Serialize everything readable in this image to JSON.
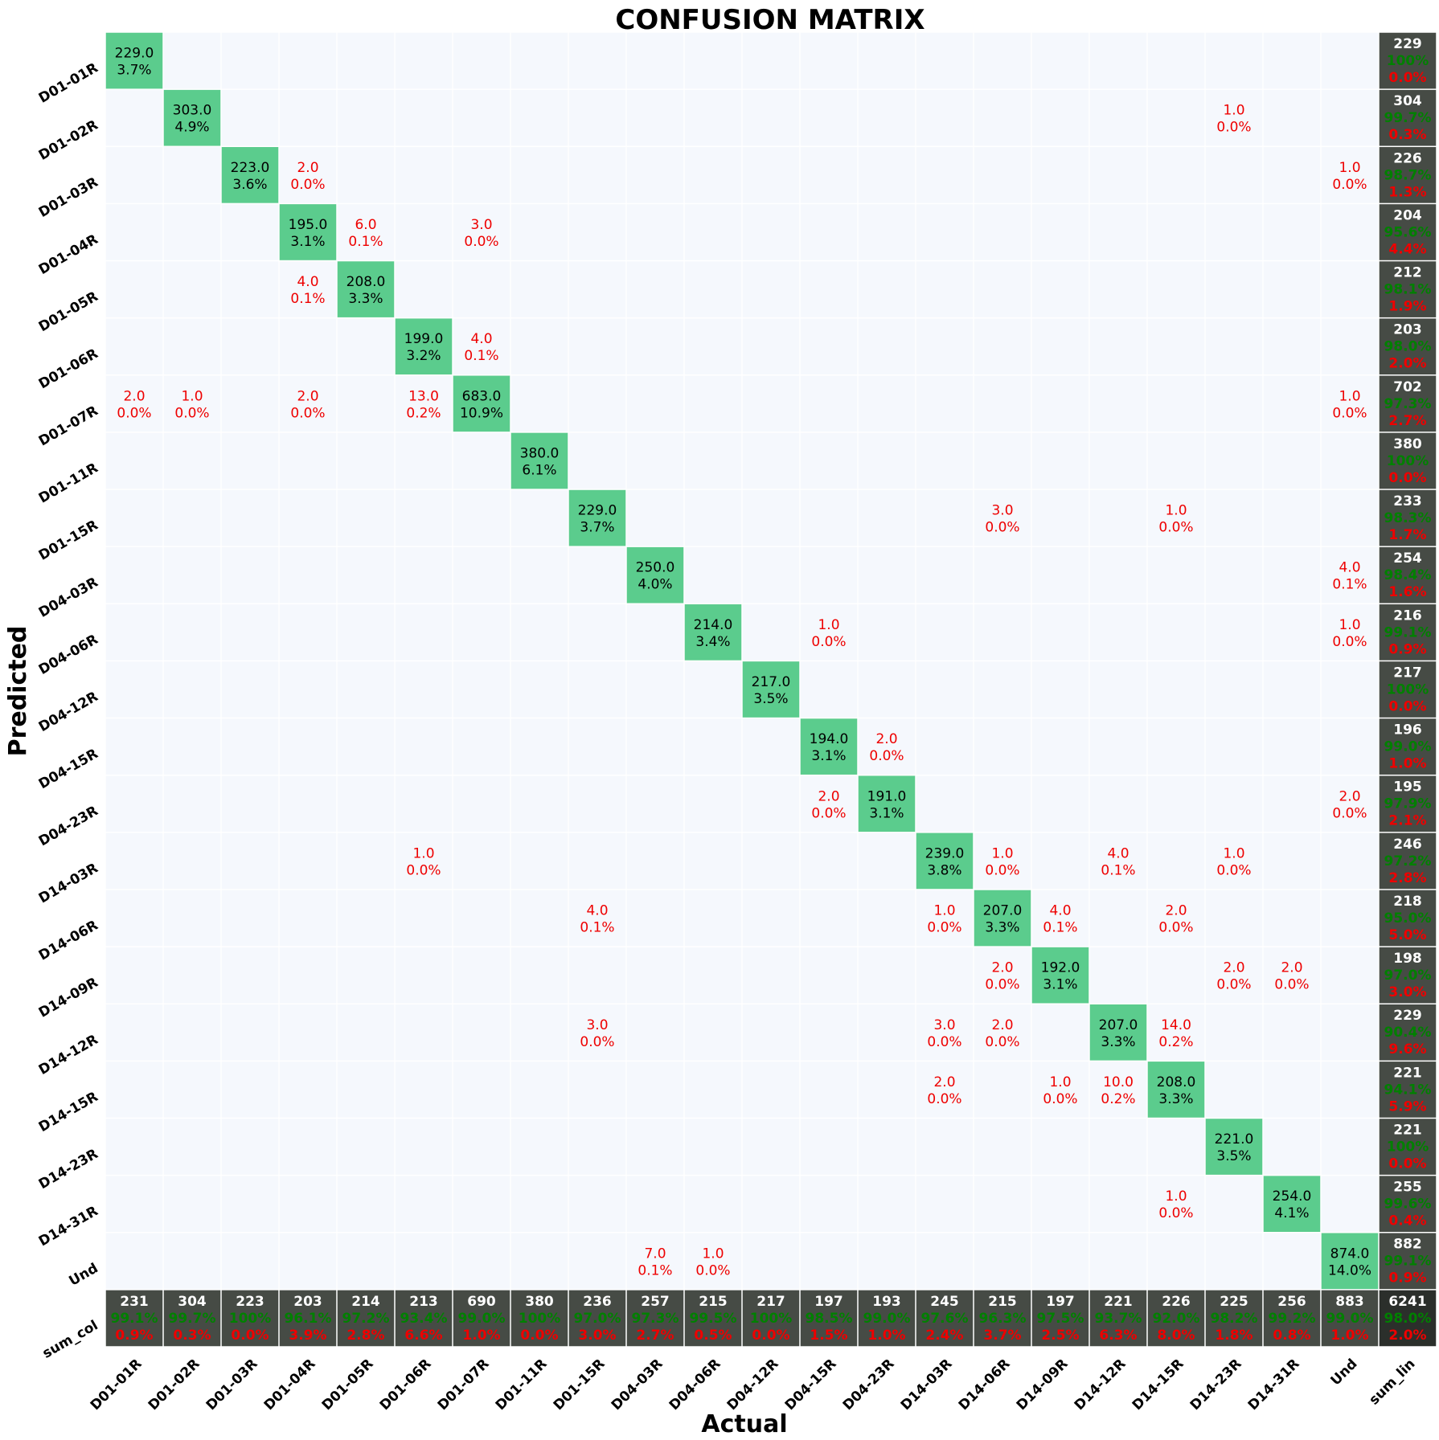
{
  "chart_data": {
    "type": "heatmap",
    "title": "CONFUSION MATRIX",
    "xlabel": "Actual",
    "ylabel": "Predicted",
    "classes": [
      "D01-01R",
      "D01-02R",
      "D01-03R",
      "D01-04R",
      "D01-05R",
      "D01-06R",
      "D01-07R",
      "D01-11R",
      "D01-15R",
      "D04-03R",
      "D04-06R",
      "D04-12R",
      "D04-15R",
      "D04-23R",
      "D14-03R",
      "D14-06R",
      "D14-09R",
      "D14-12R",
      "D14-15R",
      "D14-23R",
      "D14-31R",
      "Und"
    ],
    "row_total_label": "sum_lin",
    "col_total_label": "sum_col",
    "cells": [
      {
        "r": 0,
        "c": 0,
        "v": "229.0",
        "p": "3.7%"
      },
      {
        "r": 1,
        "c": 1,
        "v": "303.0",
        "p": "4.9%"
      },
      {
        "r": 1,
        "c": 19,
        "v": "1.0",
        "p": "0.0%"
      },
      {
        "r": 2,
        "c": 2,
        "v": "223.0",
        "p": "3.6%"
      },
      {
        "r": 2,
        "c": 3,
        "v": "2.0",
        "p": "0.0%"
      },
      {
        "r": 2,
        "c": 21,
        "v": "1.0",
        "p": "0.0%"
      },
      {
        "r": 3,
        "c": 3,
        "v": "195.0",
        "p": "3.1%"
      },
      {
        "r": 3,
        "c": 4,
        "v": "6.0",
        "p": "0.1%"
      },
      {
        "r": 3,
        "c": 6,
        "v": "3.0",
        "p": "0.0%"
      },
      {
        "r": 4,
        "c": 3,
        "v": "4.0",
        "p": "0.1%"
      },
      {
        "r": 4,
        "c": 4,
        "v": "208.0",
        "p": "3.3%"
      },
      {
        "r": 5,
        "c": 5,
        "v": "199.0",
        "p": "3.2%"
      },
      {
        "r": 5,
        "c": 6,
        "v": "4.0",
        "p": "0.1%"
      },
      {
        "r": 6,
        "c": 0,
        "v": "2.0",
        "p": "0.0%"
      },
      {
        "r": 6,
        "c": 1,
        "v": "1.0",
        "p": "0.0%"
      },
      {
        "r": 6,
        "c": 3,
        "v": "2.0",
        "p": "0.0%"
      },
      {
        "r": 6,
        "c": 5,
        "v": "13.0",
        "p": "0.2%"
      },
      {
        "r": 6,
        "c": 6,
        "v": "683.0",
        "p": "10.9%"
      },
      {
        "r": 6,
        "c": 21,
        "v": "1.0",
        "p": "0.0%"
      },
      {
        "r": 7,
        "c": 7,
        "v": "380.0",
        "p": "6.1%"
      },
      {
        "r": 8,
        "c": 8,
        "v": "229.0",
        "p": "3.7%"
      },
      {
        "r": 8,
        "c": 15,
        "v": "3.0",
        "p": "0.0%"
      },
      {
        "r": 8,
        "c": 18,
        "v": "1.0",
        "p": "0.0%"
      },
      {
        "r": 9,
        "c": 9,
        "v": "250.0",
        "p": "4.0%"
      },
      {
        "r": 9,
        "c": 21,
        "v": "4.0",
        "p": "0.1%"
      },
      {
        "r": 10,
        "c": 10,
        "v": "214.0",
        "p": "3.4%"
      },
      {
        "r": 10,
        "c": 12,
        "v": "1.0",
        "p": "0.0%"
      },
      {
        "r": 10,
        "c": 21,
        "v": "1.0",
        "p": "0.0%"
      },
      {
        "r": 11,
        "c": 11,
        "v": "217.0",
        "p": "3.5%"
      },
      {
        "r": 12,
        "c": 12,
        "v": "194.0",
        "p": "3.1%"
      },
      {
        "r": 12,
        "c": 13,
        "v": "2.0",
        "p": "0.0%"
      },
      {
        "r": 13,
        "c": 12,
        "v": "2.0",
        "p": "0.0%"
      },
      {
        "r": 13,
        "c": 13,
        "v": "191.0",
        "p": "3.1%"
      },
      {
        "r": 13,
        "c": 21,
        "v": "2.0",
        "p": "0.0%"
      },
      {
        "r": 14,
        "c": 5,
        "v": "1.0",
        "p": "0.0%"
      },
      {
        "r": 14,
        "c": 14,
        "v": "239.0",
        "p": "3.8%"
      },
      {
        "r": 14,
        "c": 15,
        "v": "1.0",
        "p": "0.0%"
      },
      {
        "r": 14,
        "c": 17,
        "v": "4.0",
        "p": "0.1%"
      },
      {
        "r": 14,
        "c": 19,
        "v": "1.0",
        "p": "0.0%"
      },
      {
        "r": 15,
        "c": 8,
        "v": "4.0",
        "p": "0.1%"
      },
      {
        "r": 15,
        "c": 14,
        "v": "1.0",
        "p": "0.0%"
      },
      {
        "r": 15,
        "c": 15,
        "v": "207.0",
        "p": "3.3%"
      },
      {
        "r": 15,
        "c": 16,
        "v": "4.0",
        "p": "0.1%"
      },
      {
        "r": 15,
        "c": 18,
        "v": "2.0",
        "p": "0.0%"
      },
      {
        "r": 16,
        "c": 15,
        "v": "2.0",
        "p": "0.0%"
      },
      {
        "r": 16,
        "c": 16,
        "v": "192.0",
        "p": "3.1%"
      },
      {
        "r": 16,
        "c": 19,
        "v": "2.0",
        "p": "0.0%"
      },
      {
        "r": 16,
        "c": 20,
        "v": "2.0",
        "p": "0.0%"
      },
      {
        "r": 17,
        "c": 8,
        "v": "3.0",
        "p": "0.0%"
      },
      {
        "r": 17,
        "c": 14,
        "v": "3.0",
        "p": "0.0%"
      },
      {
        "r": 17,
        "c": 15,
        "v": "2.0",
        "p": "0.0%"
      },
      {
        "r": 17,
        "c": 17,
        "v": "207.0",
        "p": "3.3%"
      },
      {
        "r": 17,
        "c": 18,
        "v": "14.0",
        "p": "0.2%"
      },
      {
        "r": 18,
        "c": 14,
        "v": "2.0",
        "p": "0.0%"
      },
      {
        "r": 18,
        "c": 16,
        "v": "1.0",
        "p": "0.0%"
      },
      {
        "r": 18,
        "c": 17,
        "v": "10.0",
        "p": "0.2%"
      },
      {
        "r": 18,
        "c": 18,
        "v": "208.0",
        "p": "3.3%"
      },
      {
        "r": 19,
        "c": 19,
        "v": "221.0",
        "p": "3.5%"
      },
      {
        "r": 20,
        "c": 18,
        "v": "1.0",
        "p": "0.0%"
      },
      {
        "r": 20,
        "c": 20,
        "v": "254.0",
        "p": "4.1%"
      },
      {
        "r": 21,
        "c": 9,
        "v": "7.0",
        "p": "0.1%"
      },
      {
        "r": 21,
        "c": 10,
        "v": "1.0",
        "p": "0.0%"
      },
      {
        "r": 21,
        "c": 21,
        "v": "874.0",
        "p": "14.0%"
      }
    ],
    "row_totals": [
      {
        "n": "229",
        "ok": "100%",
        "err": "0.0%"
      },
      {
        "n": "304",
        "ok": "99.7%",
        "err": "0.3%"
      },
      {
        "n": "226",
        "ok": "98.7%",
        "err": "1.3%"
      },
      {
        "n": "204",
        "ok": "95.6%",
        "err": "4.4%"
      },
      {
        "n": "212",
        "ok": "98.1%",
        "err": "1.9%"
      },
      {
        "n": "203",
        "ok": "98.0%",
        "err": "2.0%"
      },
      {
        "n": "702",
        "ok": "97.3%",
        "err": "2.7%"
      },
      {
        "n": "380",
        "ok": "100%",
        "err": "0.0%"
      },
      {
        "n": "233",
        "ok": "98.3%",
        "err": "1.7%"
      },
      {
        "n": "254",
        "ok": "98.4%",
        "err": "1.6%"
      },
      {
        "n": "216",
        "ok": "99.1%",
        "err": "0.9%"
      },
      {
        "n": "217",
        "ok": "100%",
        "err": "0.0%"
      },
      {
        "n": "196",
        "ok": "99.0%",
        "err": "1.0%"
      },
      {
        "n": "195",
        "ok": "97.9%",
        "err": "2.1%"
      },
      {
        "n": "246",
        "ok": "97.2%",
        "err": "2.8%"
      },
      {
        "n": "218",
        "ok": "95.0%",
        "err": "5.0%"
      },
      {
        "n": "198",
        "ok": "97.0%",
        "err": "3.0%"
      },
      {
        "n": "229",
        "ok": "90.4%",
        "err": "9.6%"
      },
      {
        "n": "221",
        "ok": "94.1%",
        "err": "5.9%"
      },
      {
        "n": "221",
        "ok": "100%",
        "err": "0.0%"
      },
      {
        "n": "255",
        "ok": "99.6%",
        "err": "0.4%"
      },
      {
        "n": "882",
        "ok": "99.1%",
        "err": "0.9%"
      }
    ],
    "col_totals": [
      {
        "n": "231",
        "ok": "99.1%",
        "err": "0.9%"
      },
      {
        "n": "304",
        "ok": "99.7%",
        "err": "0.3%"
      },
      {
        "n": "223",
        "ok": "100%",
        "err": "0.0%"
      },
      {
        "n": "203",
        "ok": "96.1%",
        "err": "3.9%"
      },
      {
        "n": "214",
        "ok": "97.2%",
        "err": "2.8%"
      },
      {
        "n": "213",
        "ok": "93.4%",
        "err": "6.6%"
      },
      {
        "n": "690",
        "ok": "99.0%",
        "err": "1.0%"
      },
      {
        "n": "380",
        "ok": "100%",
        "err": "0.0%"
      },
      {
        "n": "236",
        "ok": "97.0%",
        "err": "3.0%"
      },
      {
        "n": "257",
        "ok": "97.3%",
        "err": "2.7%"
      },
      {
        "n": "215",
        "ok": "99.5%",
        "err": "0.5%"
      },
      {
        "n": "217",
        "ok": "100%",
        "err": "0.0%"
      },
      {
        "n": "197",
        "ok": "98.5%",
        "err": "1.5%"
      },
      {
        "n": "193",
        "ok": "99.0%",
        "err": "1.0%"
      },
      {
        "n": "245",
        "ok": "97.6%",
        "err": "2.4%"
      },
      {
        "n": "215",
        "ok": "96.3%",
        "err": "3.7%"
      },
      {
        "n": "197",
        "ok": "97.5%",
        "err": "2.5%"
      },
      {
        "n": "221",
        "ok": "93.7%",
        "err": "6.3%"
      },
      {
        "n": "226",
        "ok": "92.0%",
        "err": "8.0%"
      },
      {
        "n": "225",
        "ok": "98.2%",
        "err": "1.8%"
      },
      {
        "n": "256",
        "ok": "99.2%",
        "err": "0.8%"
      },
      {
        "n": "883",
        "ok": "99.0%",
        "err": "1.0%"
      }
    ],
    "grand_total": {
      "n": "6241",
      "ok": "98.0%",
      "err": "2.0%"
    },
    "colors": {
      "diagonal": "#5bcc8d",
      "background": "#f5f8fd",
      "grid": "#ffffff",
      "sum_cell": "#464b45",
      "grand_cell": "#2b2f2b",
      "diag_text": "#000000",
      "off_text": "#ee0000",
      "ok_text": "#008000",
      "err_text": "#ee0000",
      "sum_text": "#ffffff"
    }
  }
}
